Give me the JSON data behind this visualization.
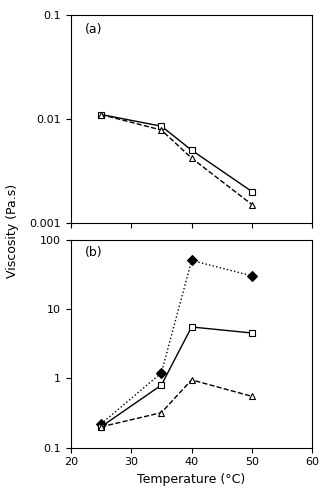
{
  "a_temp": [
    25,
    35,
    40,
    50
  ],
  "a_square_visc": [
    0.011,
    0.0085,
    0.005,
    0.002
  ],
  "a_triangle_visc": [
    0.011,
    0.0078,
    0.0042,
    0.0015
  ],
  "b_temp": [
    25,
    35,
    40,
    50
  ],
  "b_diamond_visc": [
    0.22,
    1.2,
    50,
    30
  ],
  "b_square_visc": [
    0.2,
    0.8,
    5.5,
    4.5
  ],
  "b_triangle_visc": [
    0.2,
    0.32,
    0.95,
    0.55
  ],
  "xlim": [
    20,
    60
  ],
  "xticks": [
    20,
    30,
    40,
    50,
    60
  ],
  "a_ylim": [
    0.001,
    0.1
  ],
  "b_ylim": [
    0.1,
    100
  ],
  "xlabel": "Temperature (°C)",
  "ylabel": "Viscosity (Pa.s)",
  "label_a": "(a)",
  "label_b": "(b)",
  "color_black": "#000000",
  "bg_color": "#ffffff",
  "axis_fontsize": 9,
  "tick_fontsize": 8,
  "marker_size": 5,
  "line_width": 1.0
}
